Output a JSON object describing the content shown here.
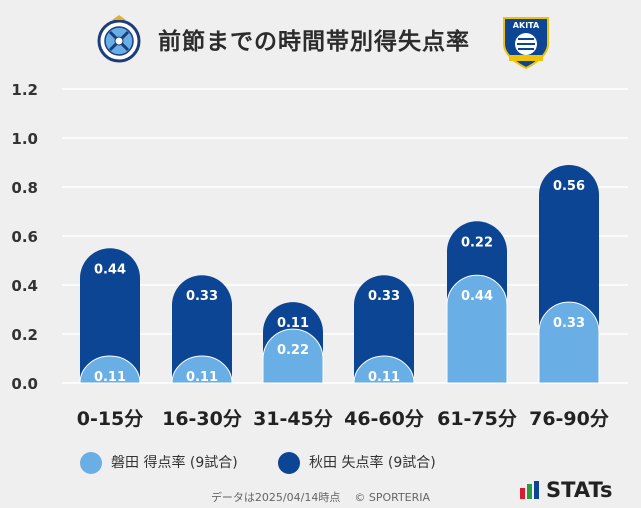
{
  "header": {
    "title": "前節までの時間帯別得失点率",
    "left_logo_text": "JUBILO",
    "right_logo_text": "BLAUBLITZ AKITA"
  },
  "colors": {
    "background": "#efefef",
    "series_a": "#6aaee6",
    "series_b": "#0b4594",
    "grid": "#ffffff"
  },
  "chart_data": {
    "type": "bar",
    "categories": [
      "0-15分",
      "16-30分",
      "31-45分",
      "46-60分",
      "61-75分",
      "76-90分"
    ],
    "series": [
      {
        "name": "磐田 得点率 (9試合)",
        "values": [
          0.11,
          0.11,
          0.22,
          0.11,
          0.44,
          0.33
        ],
        "labels": [
          "0.11",
          "0.11",
          "0.22",
          "0.11",
          "0.44",
          "0.33"
        ]
      },
      {
        "name": "秋田 失点率 (9試合)",
        "values": [
          0.44,
          0.33,
          0.11,
          0.33,
          0.22,
          0.56
        ],
        "labels": [
          "0.44",
          "0.33",
          "0.11",
          "0.33",
          "0.22",
          "0.56"
        ]
      }
    ],
    "stacked": true,
    "ylim": [
      0,
      1.2
    ],
    "yticks": [
      "0.0",
      "0.2",
      "0.4",
      "0.6",
      "0.8",
      "1.0",
      "1.2"
    ],
    "legend_position": "bottom"
  },
  "legend": {
    "series_a_label": "磐田 得点率 (9試合)",
    "series_b_label": "秋田 失点率 (9試合)"
  },
  "footer": {
    "note": "データは2025/04/14時点",
    "credit": "© SPORTERIA",
    "brand": "STATs"
  }
}
